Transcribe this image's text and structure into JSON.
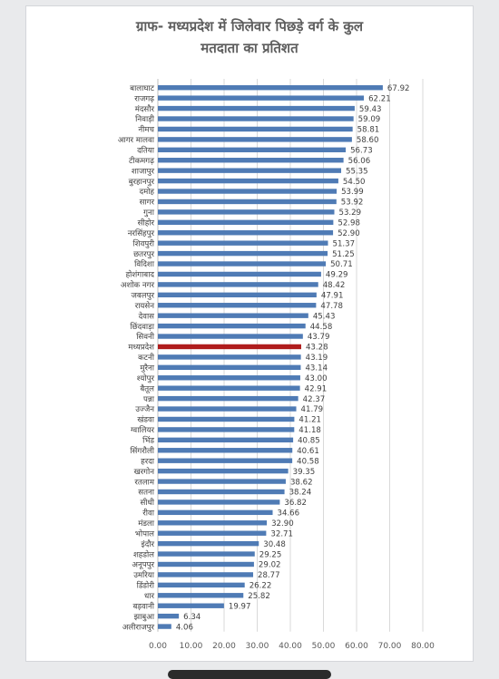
{
  "chart_data": {
    "type": "bar",
    "orientation": "horizontal",
    "title_line1": "ग्राफ-   मध्यप्रदेश में जिलेवार पिछड़े वर्ग के कुल",
    "title_line2": "मतदाता का प्रतिशत",
    "categories": [
      "बालाघाट",
      "राजगढ़",
      "मंदसौर",
      "निवाड़ी",
      "नीमच",
      "आगर मालवा",
      "दतिया",
      "टीकमगढ़",
      "शाजापुर",
      "बुरहानपुर",
      "दमोह",
      "सागर",
      "गुना",
      "सीहोर",
      "नरसिंहपुर",
      "शिवपुरी",
      "छतरपुर",
      "विदिशा",
      "होशंगाबाद",
      "अशोक नगर",
      "जबलपुर",
      "रायसेन",
      "देवास",
      "छिंदवाड़ा",
      "सिवनी",
      "मध्यप्रदेश",
      "कटनी",
      "मुरैना",
      "श्योपुर",
      "बैतूल",
      "पन्ना",
      "उज्जैन",
      "खंडवा",
      "ग्वालियर",
      "भिंड",
      "सिंगरौली",
      "हरदा",
      "खरगोन",
      "रतलाम",
      "सतना",
      "सीधी",
      "रीवा",
      "मंडला",
      "भोपाल",
      "इंदौर",
      "शहडोल",
      "अनूपपुर",
      "उमरिया",
      "डिंडोरी",
      "धार",
      "बड़वानी",
      "झाबुआ",
      "अलीराजपुर"
    ],
    "values": [
      67.92,
      62.21,
      59.43,
      59.09,
      58.81,
      58.6,
      56.73,
      56.06,
      55.35,
      54.5,
      53.99,
      53.92,
      53.29,
      52.98,
      52.9,
      51.37,
      51.25,
      50.71,
      49.29,
      48.42,
      47.91,
      47.78,
      45.43,
      44.58,
      43.79,
      43.28,
      43.19,
      43.14,
      43.0,
      42.91,
      42.37,
      41.79,
      41.21,
      41.18,
      40.85,
      40.61,
      40.58,
      39.35,
      38.62,
      38.24,
      36.82,
      34.66,
      32.9,
      32.71,
      30.48,
      29.25,
      29.02,
      28.77,
      26.22,
      25.82,
      19.97,
      6.34,
      4.06
    ],
    "value_labels": [
      "67.92",
      "62.21",
      "59.43",
      "59.09",
      "58.81",
      "58.60",
      "56.73",
      "56.06",
      "55.35",
      "54.50",
      "53.99",
      "53.92",
      "53.29",
      "52.98",
      "52.90",
      "51.37",
      "51.25",
      "50.71",
      "49.29",
      "48.42",
      "47.91",
      "47.78",
      "45.43",
      "44.58",
      "43.79",
      "43.28",
      "43.19",
      "43.14",
      "43.00",
      "42.91",
      "42.37",
      "41.79",
      "41.21",
      "41.18",
      "40.85",
      "40.61",
      "40.58",
      "39.35",
      "38.62",
      "38.24",
      "36.82",
      "34.66",
      "32.90",
      "32.71",
      "30.48",
      "29.25",
      "29.02",
      "28.77",
      "26.22",
      "25.82",
      "19.97",
      "6.34",
      "4.06"
    ],
    "highlight_category": "मध्यप्रदेश",
    "xlim": [
      0,
      80
    ],
    "xticks": [
      "0.00",
      "10.00",
      "20.00",
      "30.00",
      "40.00",
      "50.00",
      "60.00",
      "70.00",
      "80.00"
    ],
    "grid": "vertical",
    "legend": "none",
    "colors": {
      "bar": "#4f7bb5",
      "highlight": "#b01c1c",
      "grid": "#d9d9d9",
      "text": "#404040"
    }
  }
}
